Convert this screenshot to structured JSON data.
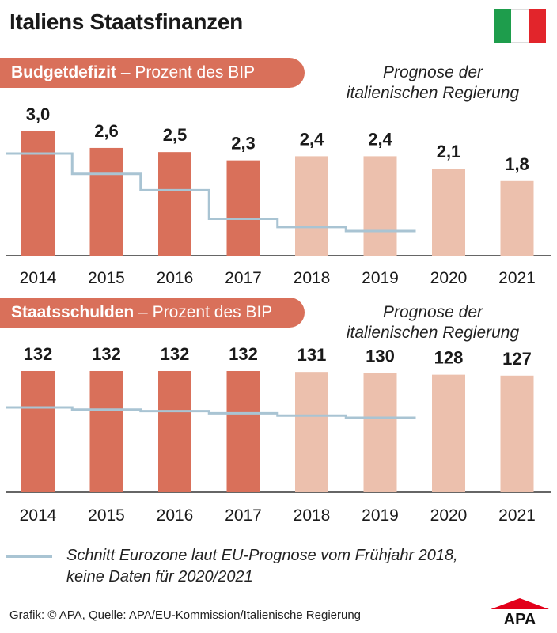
{
  "title": "Italiens Staatsfinanzen",
  "colors": {
    "actual": "#d9705a",
    "forecast": "#ecc0ad",
    "eurozone_line": "#a9c4d3",
    "flag_green": "#1e9d4c",
    "flag_white": "#ffffff",
    "flag_red": "#e2252b",
    "logo_red": "#e2001a"
  },
  "deficit": {
    "label_bold": "Budgetdefizit",
    "label_rest": " – Prozent des BIP",
    "forecast_note_line1": "Prognose der",
    "forecast_note_line2": "italienischen Regierung"
  },
  "debt": {
    "label_bold": "Staatsschulden",
    "label_rest": " – Prozent des BIP",
    "forecast_note_line1": "Prognose der",
    "forecast_note_line2": "italienischen Regierung"
  },
  "legend": {
    "line1": "Schnitt Eurozone laut EU-Prognose vom Frühjahr 2018,",
    "line2": "keine Daten für 2020/2021"
  },
  "footer": "Grafik: © APA, Quelle: APA/EU-Kommission/Italienische Regierung",
  "logo_text": "APA",
  "chart_data": [
    {
      "type": "bar",
      "title": "Budgetdefizit – Prozent des BIP",
      "categories": [
        "2014",
        "2015",
        "2016",
        "2017",
        "2018",
        "2019",
        "2020",
        "2021"
      ],
      "forecast_from": "2018",
      "series": [
        {
          "name": "Italien",
          "values": [
            3.0,
            2.6,
            2.5,
            2.3,
            2.4,
            2.4,
            2.1,
            1.8
          ],
          "labels": [
            "3,0",
            "2,6",
            "2,5",
            "2,3",
            "2,4",
            "2,4",
            "2,1",
            "1,8"
          ]
        },
        {
          "name": "Schnitt Eurozone",
          "type": "step",
          "values": [
            2.6,
            2.1,
            1.7,
            1.0,
            0.8,
            0.7,
            null,
            null
          ]
        }
      ],
      "ylim": [
        0,
        3.0
      ]
    },
    {
      "type": "bar",
      "title": "Staatsschulden – Prozent des BIP",
      "categories": [
        "2014",
        "2015",
        "2016",
        "2017",
        "2018",
        "2019",
        "2020",
        "2021"
      ],
      "forecast_from": "2018",
      "series": [
        {
          "name": "Italien",
          "values": [
            132,
            132,
            132,
            132,
            131,
            130,
            128,
            127
          ],
          "labels": [
            "132",
            "132",
            "132",
            "132",
            "131",
            "130",
            "128",
            "127"
          ]
        },
        {
          "name": "Schnitt Eurozone",
          "type": "step",
          "values": [
            92,
            90.5,
            89.5,
            88,
            86.5,
            85,
            null,
            null
          ]
        }
      ],
      "ylim": [
        0,
        132
      ]
    }
  ]
}
